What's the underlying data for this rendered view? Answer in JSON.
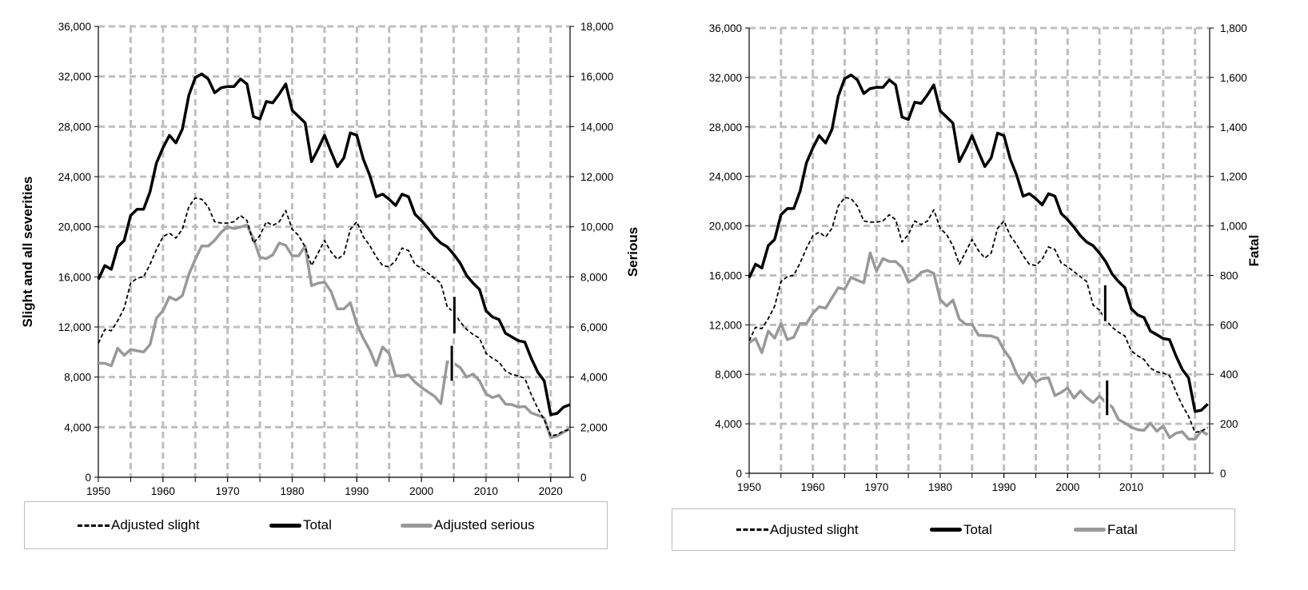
{
  "chart_data": [
    {
      "type": "line",
      "title": "",
      "ylabel": "Slight and all severities",
      "ylabel_right": "Serious",
      "xlim": [
        1950,
        2023
      ],
      "ylim": [
        0,
        36000
      ],
      "ylim_right": [
        0,
        18000
      ],
      "grid": true,
      "legend_placement": "bottom",
      "x_tick_labels": [
        "1950",
        "1960",
        "1970",
        "1980",
        "1990",
        "2000",
        "2010",
        "2020"
      ],
      "y_tick_labels": [
        "0",
        "4,000",
        "8,000",
        "12,000",
        "16,000",
        "20,000",
        "24,000",
        "28,000",
        "32,000",
        "36,000"
      ],
      "y_right_tick_labels": [
        "0",
        "2,000",
        "4,000",
        "6,000",
        "8,000",
        "10,000",
        "12,000",
        "14,000",
        "16,000",
        "18,000"
      ],
      "x_start": 1950,
      "series": [
        {
          "name": "Adjusted slight",
          "axis": "left",
          "style": "dashed",
          "color": "#000000",
          "values": [
            10700,
            11800,
            11700,
            12500,
            13500,
            15500,
            15900,
            16000,
            17000,
            18200,
            19200,
            19500,
            19100,
            19800,
            21600,
            22300,
            22200,
            21600,
            20400,
            20300,
            20300,
            20400,
            20900,
            20500,
            18700,
            19300,
            20400,
            20100,
            20400,
            21300,
            19800,
            19300,
            18400,
            16900,
            17900,
            18900,
            18000,
            17400,
            17800,
            19800,
            20400,
            19200,
            18500,
            17600,
            16900,
            16800,
            17300,
            18300,
            18100,
            17000,
            16700,
            16300,
            15900,
            15500,
            13600,
            13200,
            12400,
            11800,
            11400,
            11100,
            9900,
            9500,
            9200,
            8500,
            8200,
            8100,
            7900,
            6600,
            5500,
            4600,
            3300,
            3400,
            3700,
            3800
          ]
        },
        {
          "name": "Total",
          "axis": "left",
          "style": "solid",
          "color": "#000000",
          "values": [
            15800,
            16900,
            16600,
            18400,
            18900,
            20900,
            21400,
            21400,
            22800,
            25100,
            26300,
            27300,
            26700,
            27800,
            30500,
            31900,
            32200,
            31800,
            30700,
            31100,
            31200,
            31200,
            31800,
            31400,
            28800,
            28600,
            30000,
            29900,
            30600,
            31400,
            29300,
            28800,
            28300,
            25200,
            26200,
            27300,
            26000,
            24800,
            25500,
            27500,
            27300,
            25400,
            24100,
            22400,
            22600,
            22200,
            21700,
            22600,
            22400,
            21000,
            20500,
            19900,
            19200,
            18700,
            18400,
            17800,
            17100,
            16100,
            15500,
            15000,
            13300,
            12800,
            12600,
            11500,
            11200,
            10900,
            10800,
            9500,
            8400,
            7700,
            5000,
            5100,
            5600,
            5800
          ]
        },
        {
          "name": "Adjusted serious",
          "axis": "right",
          "style": "solid",
          "color": "#999999",
          "values": [
            4550,
            4550,
            4450,
            5150,
            4870,
            5100,
            5050,
            5000,
            5300,
            6350,
            6650,
            7200,
            7070,
            7250,
            8100,
            8700,
            9230,
            9230,
            9460,
            9780,
            10000,
            9930,
            9990,
            10070,
            9520,
            8780,
            8730,
            8880,
            9350,
            9260,
            8840,
            8840,
            9230,
            7650,
            7750,
            7790,
            7420,
            6720,
            6720,
            6970,
            6110,
            5550,
            5080,
            4460,
            5200,
            4940,
            4050,
            4050,
            4090,
            3800,
            3590,
            3410,
            3240,
            2940,
            4610,
            4550,
            4380,
            4000,
            4120,
            3850,
            3330,
            3180,
            3270,
            2920,
            2900,
            2800,
            2830,
            2570,
            2480,
            2370,
            1580,
            1650,
            1800,
            1950
          ]
        }
      ],
      "break_markers": [
        {
          "x": 2005.1,
          "y_from": 11500,
          "y_to": 14400
        },
        {
          "x": 2004.7,
          "y_from": 7700,
          "y_to": 10500
        }
      ]
    },
    {
      "type": "line",
      "title": "",
      "ylabel": "",
      "ylabel_right": "Fatal",
      "xlim": [
        1950,
        2022.3
      ],
      "ylim": [
        0,
        36000
      ],
      "ylim_right": [
        0,
        1800
      ],
      "grid": true,
      "legend_placement": "bottom",
      "x_tick_labels": [
        "1950",
        "1960",
        "1970",
        "1980",
        "1990",
        "2000",
        "2010"
      ],
      "y_tick_labels": [
        "0",
        "4,000",
        "8,000",
        "12,000",
        "16,000",
        "20,000",
        "24,000",
        "28,000",
        "32,000",
        "36,000"
      ],
      "y_right_tick_labels": [
        "0",
        "200",
        "400",
        "600",
        "800",
        "1,000",
        "1,200",
        "1,400",
        "1,600",
        "1,800"
      ],
      "x_start": 1950,
      "series": [
        {
          "name": "Adjusted slight",
          "axis": "left",
          "style": "dashed",
          "color": "#000000",
          "values": [
            10700,
            11800,
            11700,
            12500,
            13500,
            15500,
            15900,
            16000,
            17000,
            18200,
            19200,
            19500,
            19100,
            19800,
            21600,
            22300,
            22200,
            21600,
            20400,
            20300,
            20300,
            20400,
            20900,
            20500,
            18700,
            19300,
            20400,
            20100,
            20400,
            21300,
            19800,
            19300,
            18400,
            16900,
            17900,
            18900,
            18000,
            17400,
            17800,
            19800,
            20400,
            19200,
            18500,
            17600,
            16900,
            16800,
            17300,
            18300,
            18100,
            17000,
            16700,
            16300,
            15900,
            15500,
            13600,
            13200,
            12400,
            11800,
            11400,
            11100,
            9900,
            9500,
            9200,
            8500,
            8200,
            8100,
            7900,
            6600,
            5500,
            4600,
            3300,
            3400,
            3700
          ]
        },
        {
          "name": "Total",
          "axis": "left",
          "style": "solid",
          "color": "#000000",
          "values": [
            15800,
            16900,
            16600,
            18400,
            18900,
            20900,
            21400,
            21400,
            22800,
            25100,
            26300,
            27300,
            26700,
            27800,
            30500,
            31900,
            32200,
            31800,
            30700,
            31100,
            31200,
            31200,
            31800,
            31400,
            28800,
            28600,
            30000,
            29900,
            30600,
            31400,
            29300,
            28800,
            28300,
            25200,
            26200,
            27300,
            26000,
            24800,
            25500,
            27500,
            27300,
            25400,
            24100,
            22400,
            22600,
            22200,
            21700,
            22600,
            22400,
            21000,
            20500,
            19900,
            19200,
            18700,
            18400,
            17800,
            17100,
            16100,
            15500,
            15000,
            13300,
            12800,
            12600,
            11500,
            11200,
            10900,
            10800,
            9500,
            8400,
            7700,
            5000,
            5100,
            5600
          ]
        },
        {
          "name": "Fatal",
          "axis": "right",
          "style": "solid",
          "color": "#999999",
          "values": [
            528,
            545,
            487,
            575,
            546,
            605,
            540,
            550,
            605,
            605,
            647,
            673,
            667,
            709,
            750,
            744,
            792,
            780,
            770,
            891,
            818,
            868,
            856,
            856,
            832,
            773,
            785,
            812,
            820,
            808,
            702,
            676,
            700,
            623,
            602,
            602,
            558,
            556,
            555,
            546,
            499,
            463,
            402,
            365,
            407,
            369,
            383,
            386,
            314,
            327,
            345,
            304,
            333,
            306,
            286,
            312,
            286,
            268,
            217,
            203,
            186,
            176,
            174,
            203,
            170,
            191,
            144,
            162,
            168,
            138,
            138,
            171,
            156
          ]
        }
      ],
      "break_markers": [
        {
          "x": 2005.9,
          "y_from": 12300,
          "y_to": 15200
        },
        {
          "x": 2006.2,
          "y_from": 4700,
          "y_to": 7500
        }
      ]
    }
  ]
}
